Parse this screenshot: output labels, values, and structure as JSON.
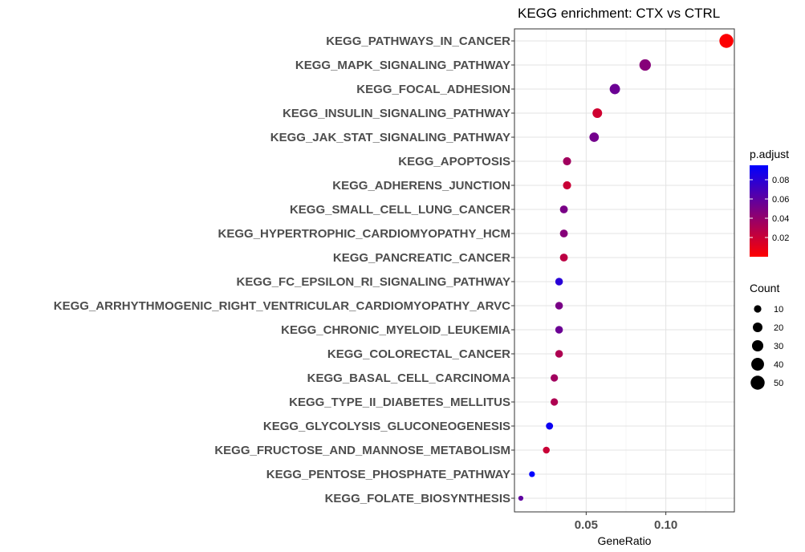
{
  "chart_data": {
    "type": "scatter",
    "title": "KEGG enrichment: CTX vs CTRL",
    "xlabel": "GeneRatio",
    "ylabel": "",
    "xlim": [
      0.005,
      0.143
    ],
    "x_ticks": [
      0.05,
      0.1
    ],
    "x_tick_labels": [
      "0.05",
      "0.10"
    ],
    "grid": true,
    "legend_position": "right",
    "categories": [
      "KEGG_PATHWAYS_IN_CANCER",
      "KEGG_MAPK_SIGNALING_PATHWAY",
      "KEGG_FOCAL_ADHESION",
      "KEGG_INSULIN_SIGNALING_PATHWAY",
      "KEGG_JAK_STAT_SIGNALING_PATHWAY",
      "KEGG_APOPTOSIS",
      "KEGG_ADHERENS_JUNCTION",
      "KEGG_SMALL_CELL_LUNG_CANCER",
      "KEGG_HYPERTROPHIC_CARDIOMYOPATHY_HCM",
      "KEGG_PANCREATIC_CANCER",
      "KEGG_FC_EPSILON_RI_SIGNALING_PATHWAY",
      "KEGG_ARRHYTHMOGENIC_RIGHT_VENTRICULAR_CARDIOMYOPATHY_ARVC",
      "KEGG_CHRONIC_MYELOID_LEUKEMIA",
      "KEGG_COLORECTAL_CANCER",
      "KEGG_BASAL_CELL_CARCINOMA",
      "KEGG_TYPE_II_DIABETES_MELLITUS",
      "KEGG_GLYCOLYSIS_GLUCONEOGENESIS",
      "KEGG_FRUCTOSE_AND_MANNOSE_METABOLISM",
      "KEGG_PENTOSE_PHOSPHATE_PATHWAY",
      "KEGG_FOLATE_BIOSYNTHESIS"
    ],
    "x": [
      0.138,
      0.087,
      0.068,
      0.057,
      0.055,
      0.038,
      0.038,
      0.036,
      0.036,
      0.036,
      0.033,
      0.033,
      0.033,
      0.033,
      0.03,
      0.03,
      0.027,
      0.025,
      0.016,
      0.009
    ],
    "count": [
      50,
      31,
      24,
      20,
      19,
      13,
      13,
      12,
      12,
      12,
      11,
      11,
      11,
      11,
      10,
      10,
      9,
      8,
      5,
      3
    ],
    "p_adjust": [
      0.001,
      0.045,
      0.055,
      0.018,
      0.052,
      0.035,
      0.02,
      0.05,
      0.045,
      0.025,
      0.08,
      0.05,
      0.055,
      0.03,
      0.035,
      0.03,
      0.09,
      0.02,
      0.095,
      0.06
    ],
    "color_legend": {
      "title": "p.adjust",
      "ticks": [
        0.08,
        0.06,
        0.04,
        0.02
      ],
      "tick_labels": [
        "0.08",
        "0.06",
        "0.04",
        "0.02"
      ],
      "range": [
        0.0,
        0.095
      ],
      "low_color": "#ff0000",
      "high_color": "#0000ff"
    },
    "size_legend": {
      "title": "Count",
      "values": [
        10,
        20,
        30,
        40,
        50
      ],
      "labels": [
        "10",
        "20",
        "30",
        "40",
        "50"
      ]
    }
  }
}
